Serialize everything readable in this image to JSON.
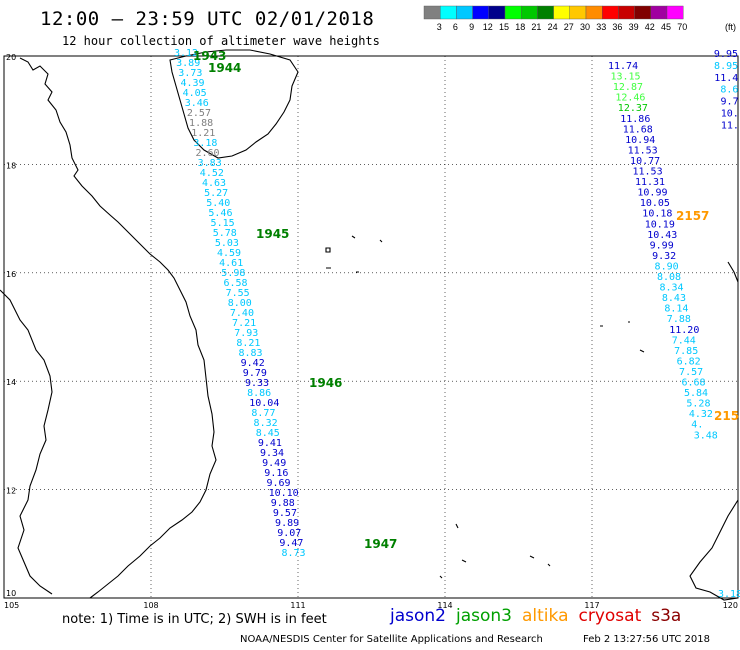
{
  "header": {
    "title": "12:00 – 23:59 UTC 02/01/2018",
    "subtitle": "12 hour collection of altimeter wave heights"
  },
  "colorbar": {
    "unit": "(ft)",
    "ticks": [
      "3",
      "6",
      "9",
      "12",
      "15",
      "18",
      "21",
      "24",
      "27",
      "30",
      "33",
      "36",
      "39",
      "42",
      "45",
      "70"
    ],
    "colors": [
      "#808080",
      "#00ffff",
      "#00c8ff",
      "#0000ff",
      "#00008b",
      "#00ff00",
      "#00c800",
      "#008000",
      "#ffff00",
      "#ffc800",
      "#ff8c00",
      "#ff0000",
      "#c80000",
      "#800000",
      "#a000a0",
      "#ff00ff"
    ]
  },
  "map": {
    "x_labels": [
      "105",
      "108",
      "111",
      "114",
      "117",
      "120"
    ],
    "y_labels": [
      "20",
      "18",
      "16",
      "14",
      "12",
      "10"
    ]
  },
  "tracks": [
    {
      "x0": 174,
      "y0": 56,
      "dx": 2.15,
      "dy": 10.0,
      "values": [
        {
          "v": "3.12",
          "c": "#00c8ff"
        },
        {
          "v": "3.89",
          "c": "#00c8ff"
        },
        {
          "v": "3.73",
          "c": "#00c8ff"
        },
        {
          "v": "4.39",
          "c": "#00c8ff"
        },
        {
          "v": "4.05",
          "c": "#00c8ff"
        },
        {
          "v": "3.46",
          "c": "#00c8ff"
        },
        {
          "v": "2.57",
          "c": "#808080"
        },
        {
          "v": "1.88",
          "c": "#808080"
        },
        {
          "v": "1.21",
          "c": "#808080"
        },
        {
          "v": "3.18",
          "c": "#00c8ff"
        },
        {
          "v": "2.60",
          "c": "#808080"
        },
        {
          "v": "3.83",
          "c": "#00c8ff"
        },
        {
          "v": "4.52",
          "c": "#00c8ff"
        },
        {
          "v": "4.63",
          "c": "#00c8ff"
        },
        {
          "v": "5.27",
          "c": "#00c8ff"
        },
        {
          "v": "5.40",
          "c": "#00c8ff"
        },
        {
          "v": "5.46",
          "c": "#00c8ff"
        },
        {
          "v": "5.15",
          "c": "#00c8ff"
        },
        {
          "v": "5.78",
          "c": "#00c8ff"
        },
        {
          "v": "5.03",
          "c": "#00c8ff"
        },
        {
          "v": "4.59",
          "c": "#00c8ff"
        },
        {
          "v": "4.61",
          "c": "#00c8ff"
        },
        {
          "v": "5.98",
          "c": "#00c8ff"
        },
        {
          "v": "6.58",
          "c": "#00c8ff"
        },
        {
          "v": "7.55",
          "c": "#00c8ff"
        },
        {
          "v": "8.00",
          "c": "#00c8ff"
        },
        {
          "v": "7.40",
          "c": "#00c8ff"
        },
        {
          "v": "7.21",
          "c": "#00c8ff"
        },
        {
          "v": "7.93",
          "c": "#00c8ff"
        },
        {
          "v": "8.21",
          "c": "#00c8ff"
        },
        {
          "v": "8.83",
          "c": "#00c8ff"
        },
        {
          "v": "9.42",
          "c": "#0000cd"
        },
        {
          "v": "9.79",
          "c": "#0000cd"
        },
        {
          "v": "9.33",
          "c": "#0000cd"
        },
        {
          "v": "8.86",
          "c": "#00c8ff"
        },
        {
          "v": "10.04",
          "c": "#0000cd"
        },
        {
          "v": "8.77",
          "c": "#00c8ff"
        },
        {
          "v": "8.32",
          "c": "#00c8ff"
        },
        {
          "v": "8.45",
          "c": "#00c8ff"
        },
        {
          "v": "9.41",
          "c": "#0000cd"
        },
        {
          "v": "9.34",
          "c": "#0000cd"
        },
        {
          "v": "9.49",
          "c": "#0000cd"
        },
        {
          "v": "9.16",
          "c": "#0000cd"
        },
        {
          "v": "9.69",
          "c": "#0000cd"
        },
        {
          "v": "10.10",
          "c": "#0000cd"
        },
        {
          "v": "9.88",
          "c": "#0000cd"
        },
        {
          "v": "9.57",
          "c": "#0000cd"
        },
        {
          "v": "9.89",
          "c": "#0000cd"
        },
        {
          "v": "9.07",
          "c": "#0000cd"
        },
        {
          "v": "9.47",
          "c": "#0000cd"
        },
        {
          "v": "8.73",
          "c": "#00c8ff"
        }
      ]
    },
    {
      "x0": 608,
      "y0": 69,
      "dx": 2.45,
      "dy": 10.55,
      "values": [
        {
          "v": "11.74",
          "c": "#0000cd"
        },
        {
          "v": "13.15",
          "c": "#40ff40"
        },
        {
          "v": "12.87",
          "c": "#40ff40"
        },
        {
          "v": "12.46",
          "c": "#40ff40"
        },
        {
          "v": "12.37",
          "c": "#00c800"
        },
        {
          "v": "11.86",
          "c": "#0000cd"
        },
        {
          "v": "11.68",
          "c": "#0000cd"
        },
        {
          "v": "10.94",
          "c": "#0000cd"
        },
        {
          "v": "11.53",
          "c": "#0000cd"
        },
        {
          "v": "10.77",
          "c": "#0000cd"
        },
        {
          "v": "11.53",
          "c": "#0000cd"
        },
        {
          "v": "11.31",
          "c": "#0000cd"
        },
        {
          "v": "10.99",
          "c": "#0000cd"
        },
        {
          "v": "10.05",
          "c": "#0000cd"
        },
        {
          "v": "10.18",
          "c": "#0000cd"
        },
        {
          "v": "10.19",
          "c": "#0000cd"
        },
        {
          "v": "10.43",
          "c": "#0000cd"
        },
        {
          "v": "9.99",
          "c": "#0000cd"
        },
        {
          "v": "9.32",
          "c": "#0000cd"
        },
        {
          "v": "8.90",
          "c": "#00c8ff"
        },
        {
          "v": "8.08",
          "c": "#00c8ff"
        },
        {
          "v": "8.34",
          "c": "#00c8ff"
        },
        {
          "v": "8.43",
          "c": "#00c8ff"
        },
        {
          "v": "8.14",
          "c": "#00c8ff"
        },
        {
          "v": "7.88",
          "c": "#00c8ff"
        },
        {
          "v": "11.20",
          "c": "#0000cd"
        },
        {
          "v": "7.44",
          "c": "#00c8ff"
        },
        {
          "v": "7.85",
          "c": "#00c8ff"
        },
        {
          "v": "6.82",
          "c": "#00c8ff"
        },
        {
          "v": "7.57",
          "c": "#00c8ff"
        },
        {
          "v": "6.68",
          "c": "#00c8ff"
        },
        {
          "v": "5.84",
          "c": "#00c8ff"
        },
        {
          "v": "5.28",
          "c": "#00c8ff"
        },
        {
          "v": "4.32",
          "c": "#00c8ff"
        },
        {
          "v": "4.",
          "c": "#00c8ff"
        },
        {
          "v": "3.48",
          "c": "#00c8ff"
        }
      ]
    },
    {
      "x0": 738,
      "y0": 57,
      "dx": 0.15,
      "dy": 11.9,
      "anchor": "end",
      "values": [
        {
          "v": "9.95",
          "c": "#0000cd"
        },
        {
          "v": "8.95",
          "c": "#00c8ff"
        },
        {
          "v": "11.4",
          "c": "#0000cd"
        },
        {
          "v": "8.6",
          "c": "#00c8ff"
        },
        {
          "v": "9.7",
          "c": "#0000cd"
        },
        {
          "v": "10.",
          "c": "#0000cd"
        },
        {
          "v": "11.",
          "c": "#0000cd"
        }
      ]
    },
    {
      "x0": 718,
      "y0": 597,
      "dx": 0,
      "dy": 0,
      "values": [
        {
          "v": "3.18",
          "c": "#00c8ff"
        }
      ]
    }
  ],
  "time_labels": [
    {
      "t": "1943",
      "c": "#008000"
    },
    {
      "t": "1944",
      "c": "#008000"
    },
    {
      "t": "1945",
      "c": "#008000"
    },
    {
      "t": "1946",
      "c": "#008000"
    },
    {
      "t": "1947",
      "c": "#008000"
    },
    {
      "t": "2157",
      "c": "#ff9900"
    },
    {
      "t": "215",
      "c": "#ff9900"
    }
  ],
  "footer": {
    "note": "note: 1) Time is in UTC; 2) SWH is in feet",
    "legend": [
      {
        "name": "jason2",
        "c": "#0000cd"
      },
      {
        "name": "jason3",
        "c": "#00a000"
      },
      {
        "name": "altika",
        "c": "#ff9900"
      },
      {
        "name": "cryosat",
        "c": "#e00000"
      },
      {
        "name": "s3a",
        "c": "#8b0000"
      }
    ],
    "credit": "NOAA/NESDIS Center for Satellite Applications and Research",
    "timestamp": "Feb  2 13:27:56 UTC 2018"
  }
}
